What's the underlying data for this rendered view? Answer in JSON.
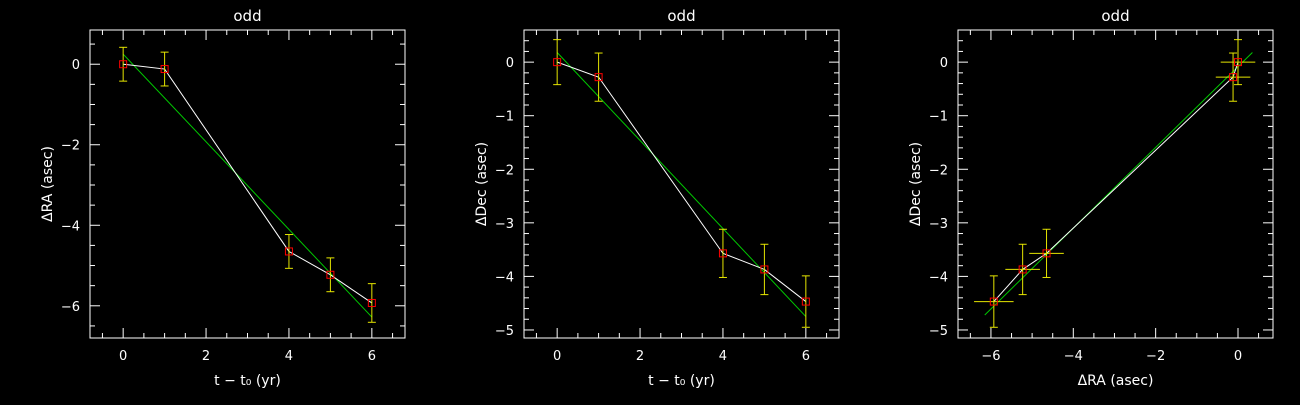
{
  "colors": {
    "background": "#000000",
    "axes": "#ffffff",
    "data_line": "#ffffff",
    "fit_line": "#00c800",
    "error_bars": "#e6e600",
    "markers": "#ff0000"
  },
  "chart_data": [
    {
      "type": "line",
      "title": "odd",
      "xlabel": "t − t₀ (yr)",
      "ylabel": "ΔRA (asec)",
      "xlim": [
        -0.8,
        6.8
      ],
      "ylim": [
        -6.8,
        0.85
      ],
      "xticks": [
        0,
        2,
        4,
        6
      ],
      "yticks": [
        0,
        -2,
        -4,
        -6
      ],
      "x": [
        0,
        1,
        4,
        5,
        6
      ],
      "y": [
        0.0,
        -0.12,
        -4.65,
        -5.23,
        -5.93
      ],
      "yerr": [
        0.42,
        0.42,
        0.42,
        0.42,
        0.48
      ],
      "fit": {
        "x": [
          0,
          6
        ],
        "y": [
          0.25,
          -6.28
        ]
      }
    },
    {
      "type": "line",
      "title": "odd",
      "xlabel": "t − t₀ (yr)",
      "ylabel": "ΔDec (asec)",
      "xlim": [
        -0.8,
        6.8
      ],
      "ylim": [
        -5.15,
        0.6
      ],
      "xticks": [
        0,
        2,
        4,
        6
      ],
      "yticks": [
        0,
        -1,
        -2,
        -3,
        -4,
        -5
      ],
      "x": [
        0,
        1,
        4,
        5,
        6
      ],
      "y": [
        0.0,
        -0.28,
        -3.57,
        -3.87,
        -4.47
      ],
      "yerr": [
        0.42,
        0.45,
        0.45,
        0.47,
        0.48
      ],
      "fit": {
        "x": [
          0,
          6
        ],
        "y": [
          0.18,
          -4.75
        ]
      }
    },
    {
      "type": "scatter",
      "title": "odd",
      "xlabel": "ΔRA (asec)",
      "ylabel": "ΔDec (asec)",
      "xlim": [
        -6.8,
        0.85
      ],
      "ylim": [
        -5.15,
        0.6
      ],
      "xticks": [
        -6,
        -4,
        -2,
        0
      ],
      "yticks": [
        0,
        -1,
        -2,
        -3,
        -4,
        -5
      ],
      "x": [
        0.0,
        -0.12,
        -4.65,
        -5.23,
        -5.93
      ],
      "y": [
        0.0,
        -0.28,
        -3.57,
        -3.87,
        -4.47
      ],
      "xerr": [
        0.42,
        0.42,
        0.42,
        0.42,
        0.48
      ],
      "yerr": [
        0.42,
        0.45,
        0.45,
        0.47,
        0.48
      ],
      "fit": {
        "x": [
          -6.15,
          0.35
        ],
        "y": [
          -4.72,
          0.18
        ]
      }
    }
  ]
}
